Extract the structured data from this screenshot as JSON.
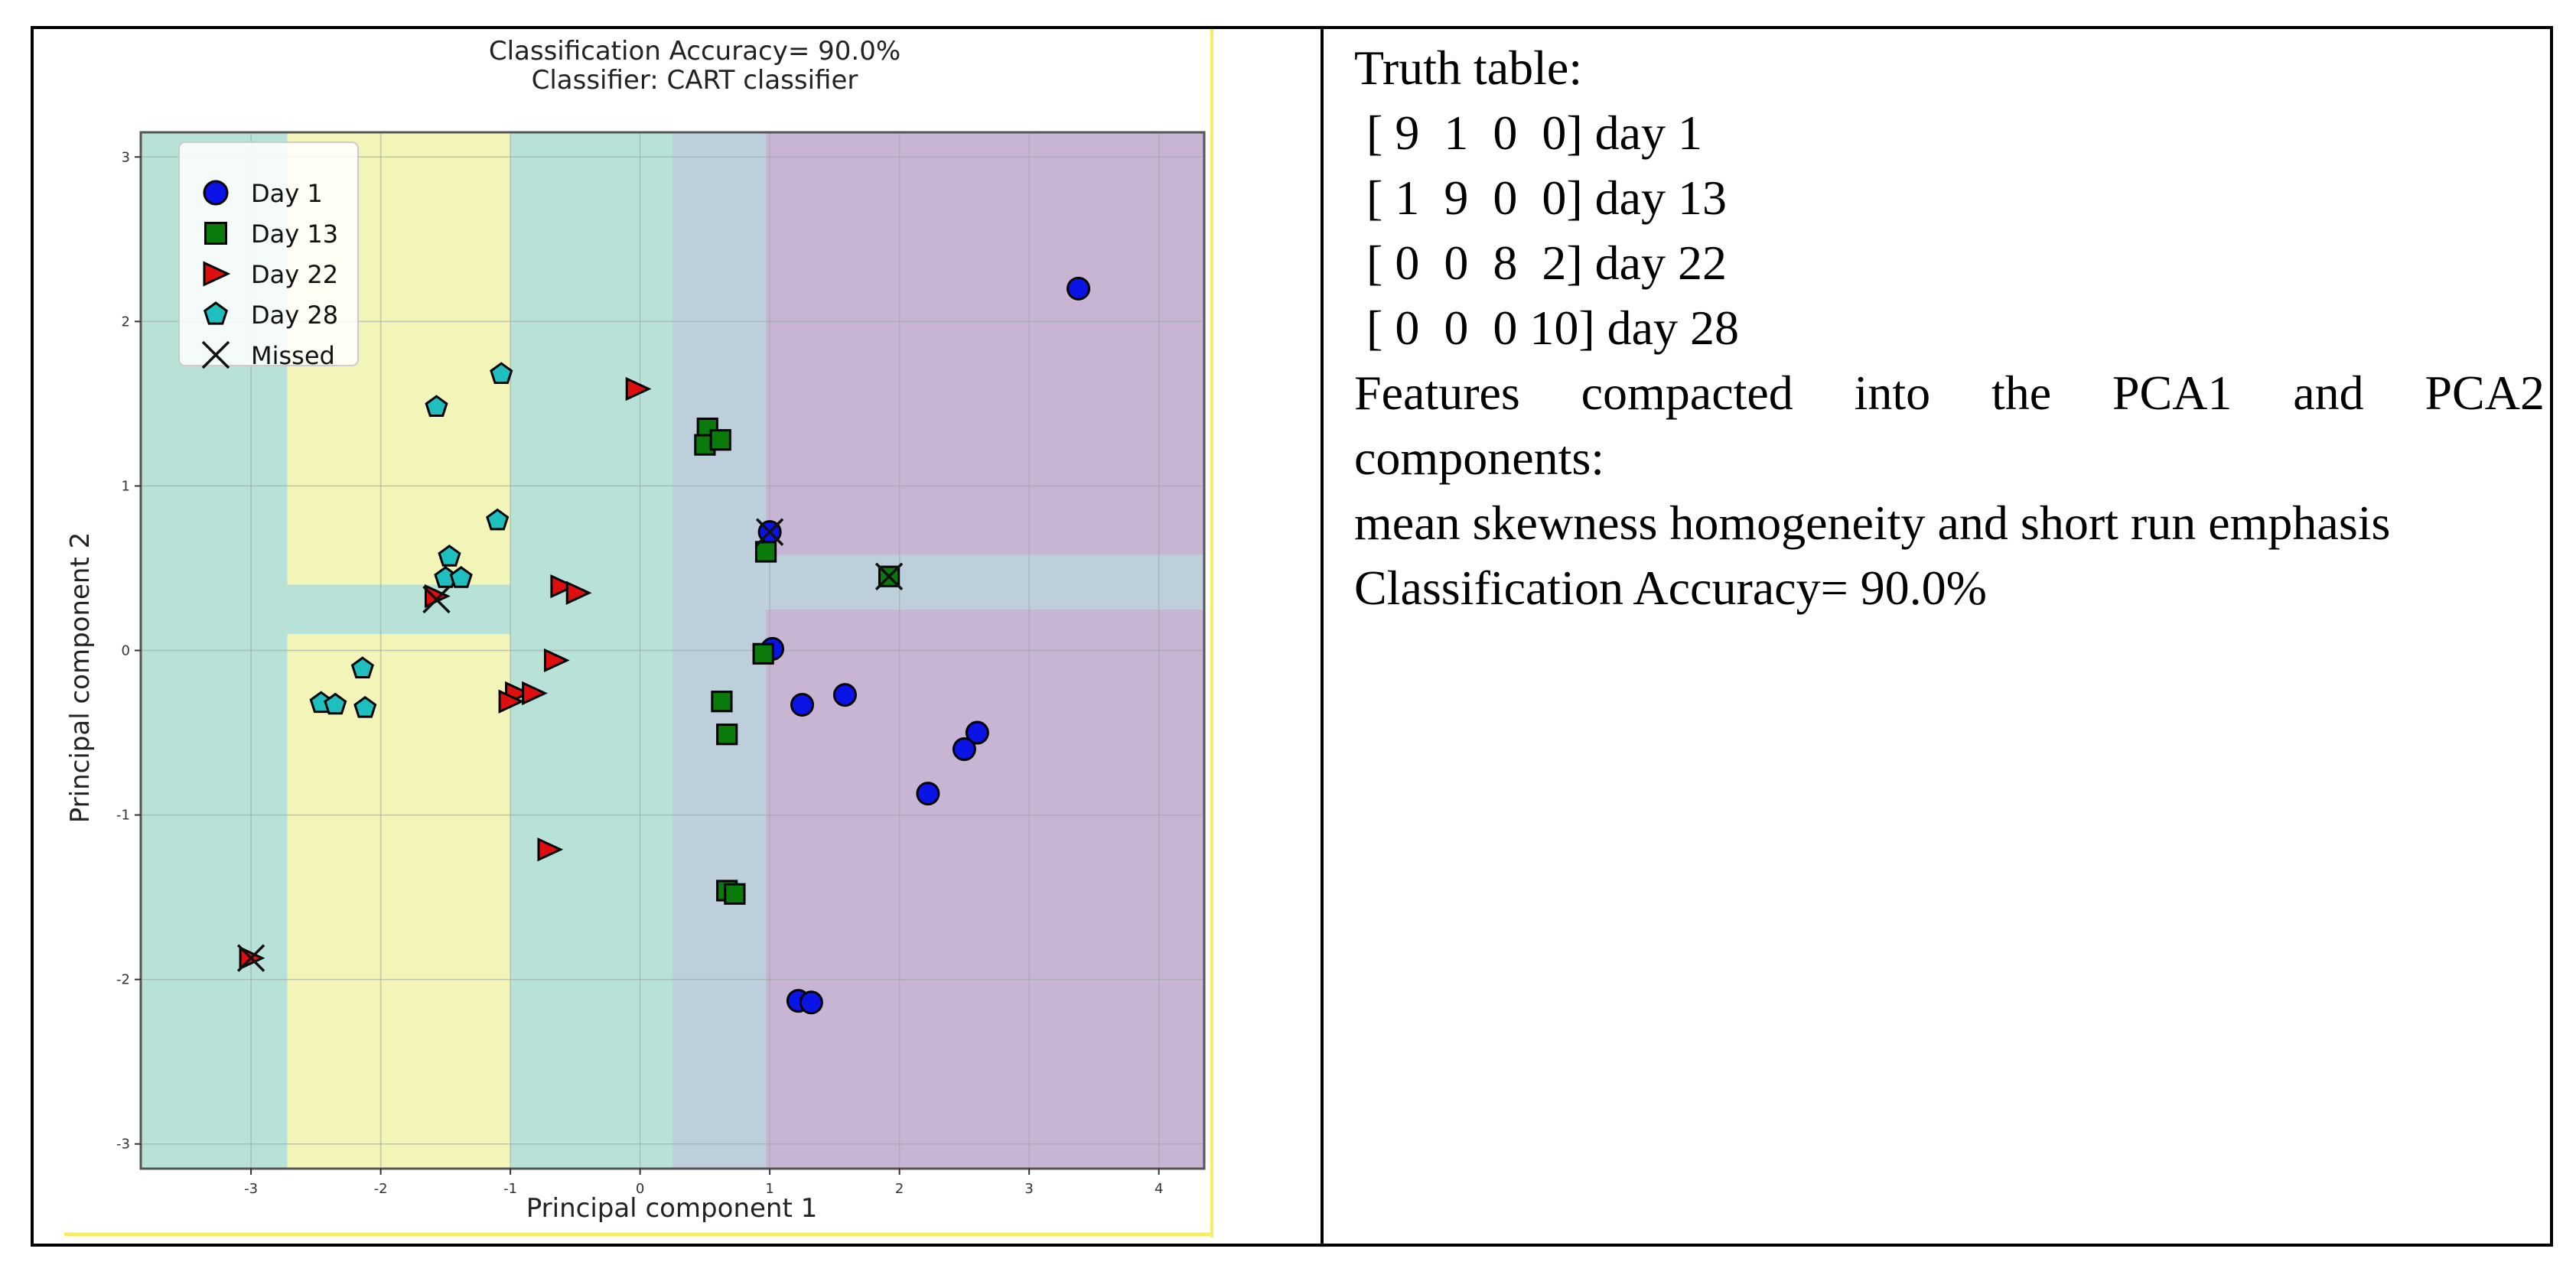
{
  "chart_data": {
    "type": "scatter",
    "title": "Classification Accuracy= 90.0%",
    "subtitle": "Classifier: CART  classifier",
    "xlabel": "Principal component 1",
    "ylabel": "Principal component 2",
    "xlim": [
      -3.85,
      4.35
    ],
    "ylim": [
      -3.15,
      3.15
    ],
    "xticks": [
      -3,
      -2,
      -1,
      0,
      1,
      2,
      3,
      4
    ],
    "yticks": [
      -3,
      -2,
      -1,
      0,
      1,
      2,
      3
    ],
    "grid": true,
    "legend_position": "top-left",
    "region_colors": {
      "cyan": "#b8e1d8",
      "yellow": "#f3f4b8",
      "blue": "#bccfdb",
      "purple": "#c8b5d3"
    },
    "regions": [
      {
        "class": "cyan",
        "x": [
          -3.85,
          -2.72
        ],
        "y": [
          -3.15,
          3.15
        ]
      },
      {
        "class": "yellow",
        "x": [
          -2.72,
          -1.0
        ],
        "y": [
          0.4,
          3.15
        ]
      },
      {
        "class": "cyan",
        "x": [
          -2.72,
          -1.0
        ],
        "y": [
          0.1,
          0.4
        ]
      },
      {
        "class": "yellow",
        "x": [
          -2.72,
          -1.0
        ],
        "y": [
          -3.15,
          0.1
        ]
      },
      {
        "class": "cyan",
        "x": [
          -1.0,
          0.25
        ],
        "y": [
          -3.15,
          3.15
        ]
      },
      {
        "class": "blue",
        "x": [
          0.25,
          0.97
        ],
        "y": [
          -3.15,
          3.15
        ]
      },
      {
        "class": "purple",
        "x": [
          0.97,
          4.35
        ],
        "y": [
          0.58,
          3.15
        ]
      },
      {
        "class": "blue",
        "x": [
          0.97,
          4.35
        ],
        "y": [
          0.25,
          0.58
        ]
      },
      {
        "class": "purple",
        "x": [
          0.97,
          4.35
        ],
        "y": [
          -3.15,
          0.25
        ]
      }
    ],
    "series": [
      {
        "name": "Day 1",
        "marker": "circle",
        "color": "#0a14e6",
        "points": [
          [
            3.38,
            2.2
          ],
          [
            1.0,
            0.72
          ],
          [
            1.02,
            0.01
          ],
          [
            1.25,
            -0.33
          ],
          [
            1.58,
            -0.27
          ],
          [
            2.6,
            -0.5
          ],
          [
            2.5,
            -0.6
          ],
          [
            2.22,
            -0.87
          ],
          [
            1.22,
            -2.13
          ],
          [
            1.32,
            -2.14
          ]
        ]
      },
      {
        "name": "Day 13",
        "marker": "square",
        "color": "#0a7a0a",
        "points": [
          [
            0.52,
            1.35
          ],
          [
            0.5,
            1.25
          ],
          [
            0.62,
            1.28
          ],
          [
            0.97,
            0.6
          ],
          [
            1.92,
            0.45
          ],
          [
            0.95,
            -0.02
          ],
          [
            0.63,
            -0.31
          ],
          [
            0.67,
            -0.51
          ],
          [
            0.67,
            -1.46
          ],
          [
            0.73,
            -1.48
          ]
        ]
      },
      {
        "name": "Day 22",
        "marker": "triangle-right",
        "color": "#e00f0f",
        "points": [
          [
            -0.02,
            1.59
          ],
          [
            -1.57,
            0.33
          ],
          [
            -0.6,
            0.39
          ],
          [
            -0.48,
            0.35
          ],
          [
            -0.65,
            -0.06
          ],
          [
            -0.95,
            -0.26
          ],
          [
            -0.82,
            -0.26
          ],
          [
            -1.0,
            -0.31
          ],
          [
            -0.7,
            -1.21
          ],
          [
            -3.0,
            -1.87
          ]
        ]
      },
      {
        "name": "Day 28",
        "marker": "pentagon",
        "color": "#1fbfbf",
        "points": [
          [
            -1.07,
            1.68
          ],
          [
            -1.57,
            1.48
          ],
          [
            -1.1,
            0.79
          ],
          [
            -1.47,
            0.57
          ],
          [
            -1.5,
            0.44
          ],
          [
            -1.38,
            0.44
          ],
          [
            -2.14,
            -0.11
          ],
          [
            -2.46,
            -0.32
          ],
          [
            -2.35,
            -0.33
          ],
          [
            -2.12,
            -0.35
          ]
        ]
      },
      {
        "name": "Missed",
        "marker": "x",
        "color": "#111111",
        "points": [
          [
            1.0,
            0.72
          ],
          [
            1.92,
            0.45
          ],
          [
            -1.57,
            0.31
          ],
          [
            -3.0,
            -1.87
          ]
        ]
      }
    ]
  },
  "info": {
    "truth_title": "Truth table:",
    "rows": [
      " [ 9  1  0  0] day 1",
      " [ 1  9  0  0] day 13",
      " [ 0  0  8  2] day 22",
      " [ 0  0  0 10] day 28"
    ],
    "features_words": [
      "Features",
      "compacted",
      "into",
      "the",
      "PCA1",
      "and",
      "PCA2"
    ],
    "features_end": "components:",
    "features_list": "mean skewness homogeneity and short run emphasis",
    "accuracy": "Classification Accuracy= 90.0%"
  }
}
